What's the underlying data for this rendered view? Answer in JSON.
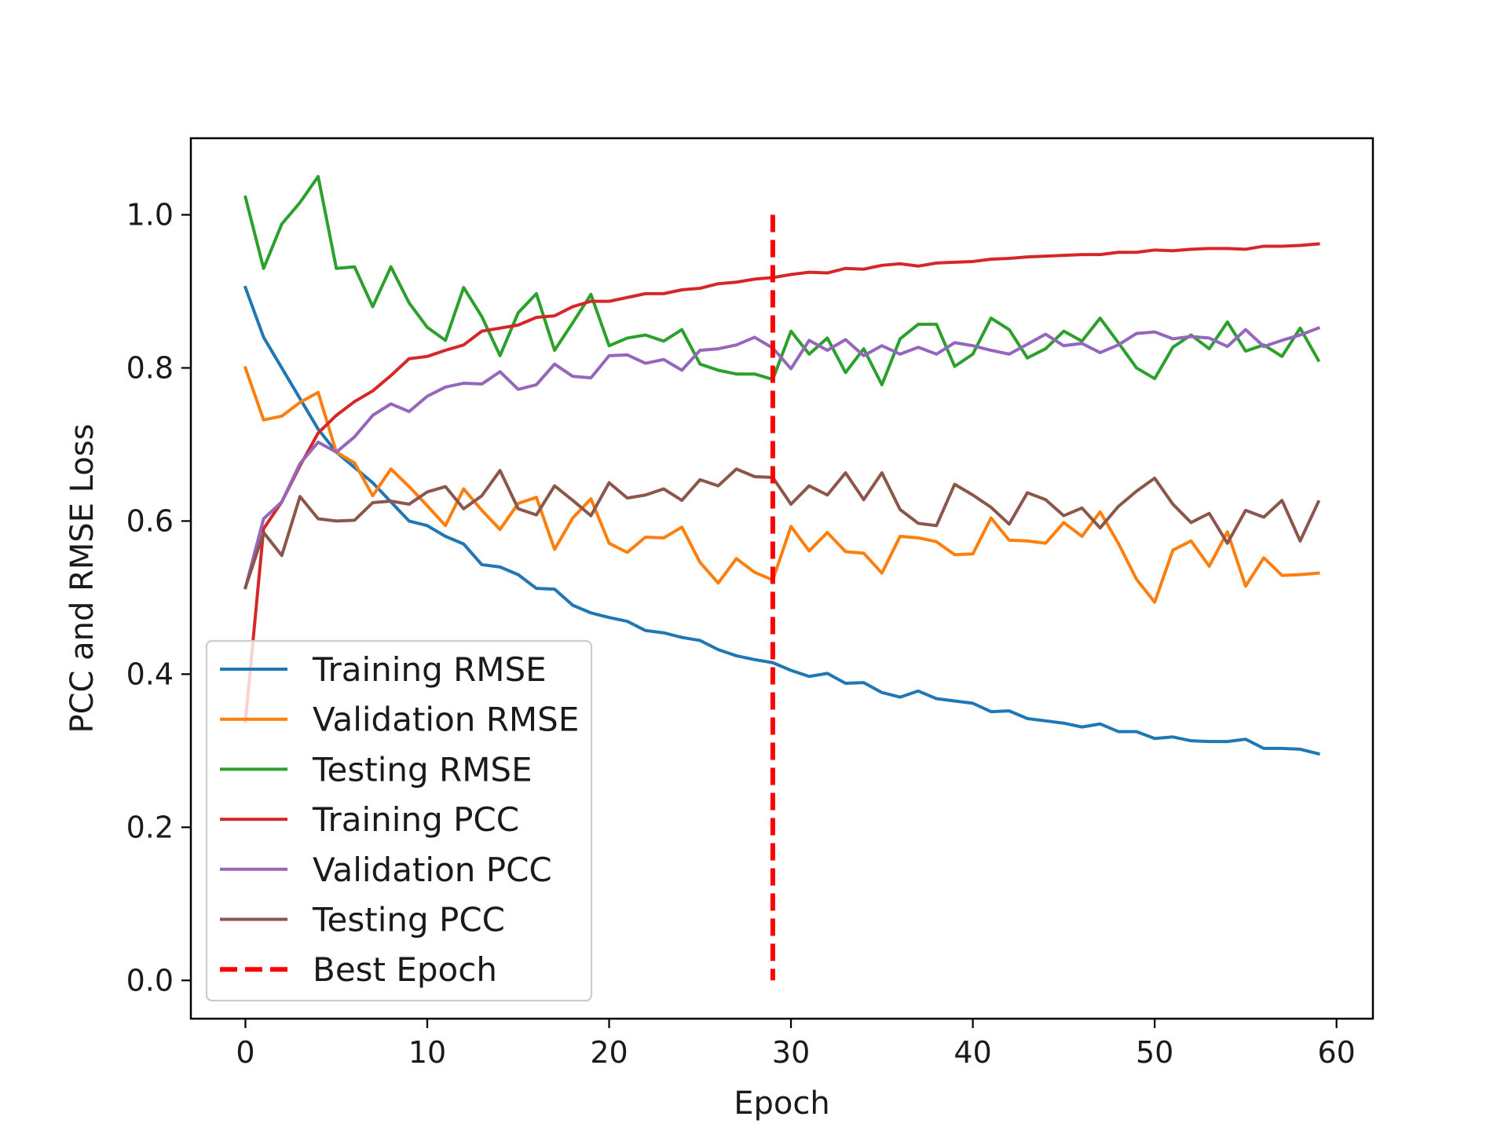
{
  "chart_data": {
    "type": "line",
    "title": "",
    "xlabel": "Epoch",
    "ylabel": "PCC and RMSE Loss",
    "xlim": [
      -3,
      62
    ],
    "ylim": [
      -0.05,
      1.1
    ],
    "xticks": [
      0,
      10,
      20,
      30,
      40,
      50,
      60
    ],
    "xtick_labels": [
      "0",
      "10",
      "20",
      "30",
      "40",
      "50",
      "60"
    ],
    "yticks": [
      0.0,
      0.2,
      0.4,
      0.6,
      0.8,
      1.0
    ],
    "ytick_labels": [
      "0.0",
      "0.2",
      "0.4",
      "0.6",
      "0.8",
      "1.0"
    ],
    "grid": false,
    "legend_position": "lower-left",
    "x": [
      0,
      1,
      2,
      3,
      4,
      5,
      6,
      7,
      8,
      9,
      10,
      11,
      12,
      13,
      14,
      15,
      16,
      17,
      18,
      19,
      20,
      21,
      22,
      23,
      24,
      25,
      26,
      27,
      28,
      29,
      30,
      31,
      32,
      33,
      34,
      35,
      36,
      37,
      38,
      39,
      40,
      41,
      42,
      43,
      44,
      45,
      46,
      47,
      48,
      49,
      50,
      51,
      52,
      53,
      54,
      55,
      56,
      57,
      58,
      59
    ],
    "series": [
      {
        "name": "Training RMSE",
        "color": "#1f77b4",
        "values": [
          0.905,
          0.84,
          0.8,
          0.76,
          0.72,
          0.69,
          0.67,
          0.65,
          0.625,
          0.6,
          0.594,
          0.58,
          0.57,
          0.543,
          0.54,
          0.53,
          0.512,
          0.511,
          0.49,
          0.48,
          0.474,
          0.469,
          0.457,
          0.454,
          0.448,
          0.444,
          0.432,
          0.424,
          0.419,
          0.415,
          0.405,
          0.397,
          0.401,
          0.388,
          0.389,
          0.376,
          0.37,
          0.378,
          0.368,
          0.365,
          0.362,
          0.351,
          0.352,
          0.342,
          0.339,
          0.336,
          0.331,
          0.335,
          0.325,
          0.325,
          0.316,
          0.318,
          0.313,
          0.312,
          0.312,
          0.315,
          0.303,
          0.303,
          0.302,
          0.296
        ]
      },
      {
        "name": "Validation RMSE",
        "color": "#ff7f0e",
        "values": [
          0.8,
          0.732,
          0.737,
          0.755,
          0.768,
          0.69,
          0.676,
          0.633,
          0.668,
          0.645,
          0.62,
          0.594,
          0.642,
          0.614,
          0.589,
          0.623,
          0.631,
          0.563,
          0.604,
          0.629,
          0.571,
          0.559,
          0.579,
          0.578,
          0.592,
          0.546,
          0.519,
          0.551,
          0.533,
          0.523,
          0.593,
          0.561,
          0.585,
          0.56,
          0.558,
          0.532,
          0.58,
          0.578,
          0.573,
          0.556,
          0.557,
          0.604,
          0.575,
          0.574,
          0.571,
          0.598,
          0.58,
          0.612,
          0.571,
          0.524,
          0.494,
          0.562,
          0.574,
          0.541,
          0.586,
          0.515,
          0.552,
          0.529,
          0.53,
          0.532
        ]
      },
      {
        "name": "Testing RMSE",
        "color": "#2ca02c",
        "values": [
          1.023,
          0.93,
          0.988,
          1.016,
          1.05,
          0.93,
          0.932,
          0.88,
          0.932,
          0.885,
          0.853,
          0.836,
          0.905,
          0.867,
          0.816,
          0.872,
          0.897,
          0.823,
          0.859,
          0.896,
          0.829,
          0.839,
          0.843,
          0.835,
          0.85,
          0.805,
          0.797,
          0.792,
          0.792,
          0.785,
          0.848,
          0.818,
          0.839,
          0.794,
          0.825,
          0.778,
          0.838,
          0.857,
          0.857,
          0.802,
          0.818,
          0.865,
          0.85,
          0.813,
          0.825,
          0.848,
          0.835,
          0.865,
          0.833,
          0.8,
          0.786,
          0.827,
          0.843,
          0.825,
          0.86,
          0.822,
          0.83,
          0.815,
          0.852,
          0.81
        ]
      },
      {
        "name": "Training PCC",
        "color": "#d62728",
        "values": [
          0.338,
          0.59,
          0.625,
          0.672,
          0.715,
          0.738,
          0.756,
          0.77,
          0.79,
          0.812,
          0.815,
          0.823,
          0.83,
          0.848,
          0.852,
          0.856,
          0.866,
          0.868,
          0.88,
          0.887,
          0.887,
          0.892,
          0.897,
          0.897,
          0.902,
          0.904,
          0.91,
          0.912,
          0.916,
          0.918,
          0.922,
          0.925,
          0.924,
          0.93,
          0.929,
          0.934,
          0.936,
          0.933,
          0.937,
          0.938,
          0.939,
          0.942,
          0.943,
          0.945,
          0.946,
          0.947,
          0.948,
          0.948,
          0.951,
          0.951,
          0.954,
          0.953,
          0.955,
          0.956,
          0.956,
          0.955,
          0.959,
          0.959,
          0.96,
          0.962
        ]
      },
      {
        "name": "Validation PCC",
        "color": "#9467bd",
        "values": [
          0.513,
          0.603,
          0.625,
          0.675,
          0.703,
          0.69,
          0.71,
          0.738,
          0.753,
          0.743,
          0.763,
          0.775,
          0.78,
          0.779,
          0.795,
          0.772,
          0.778,
          0.805,
          0.789,
          0.787,
          0.816,
          0.817,
          0.806,
          0.811,
          0.797,
          0.823,
          0.825,
          0.83,
          0.84,
          0.826,
          0.799,
          0.836,
          0.823,
          0.837,
          0.816,
          0.829,
          0.818,
          0.827,
          0.818,
          0.833,
          0.829,
          0.823,
          0.818,
          0.831,
          0.844,
          0.829,
          0.832,
          0.82,
          0.83,
          0.845,
          0.847,
          0.838,
          0.841,
          0.839,
          0.828,
          0.85,
          0.828,
          0.836,
          0.843,
          0.852
        ]
      },
      {
        "name": "Testing PCC",
        "color": "#8c564b",
        "values": [
          0.513,
          0.585,
          0.555,
          0.632,
          0.603,
          0.6,
          0.601,
          0.624,
          0.626,
          0.622,
          0.638,
          0.645,
          0.616,
          0.633,
          0.666,
          0.616,
          0.608,
          0.646,
          0.627,
          0.607,
          0.65,
          0.63,
          0.634,
          0.642,
          0.627,
          0.654,
          0.646,
          0.668,
          0.658,
          0.657,
          0.622,
          0.646,
          0.634,
          0.663,
          0.628,
          0.663,
          0.615,
          0.597,
          0.594,
          0.648,
          0.634,
          0.618,
          0.596,
          0.637,
          0.628,
          0.607,
          0.617,
          0.591,
          0.619,
          0.639,
          0.656,
          0.622,
          0.598,
          0.61,
          0.571,
          0.614,
          0.605,
          0.627,
          0.574,
          0.625
        ]
      }
    ],
    "reference_line": {
      "name": "Best Epoch",
      "color": "#ff0000",
      "style": "dashed",
      "x": 29,
      "y_range": [
        0.0,
        1.0
      ]
    }
  }
}
